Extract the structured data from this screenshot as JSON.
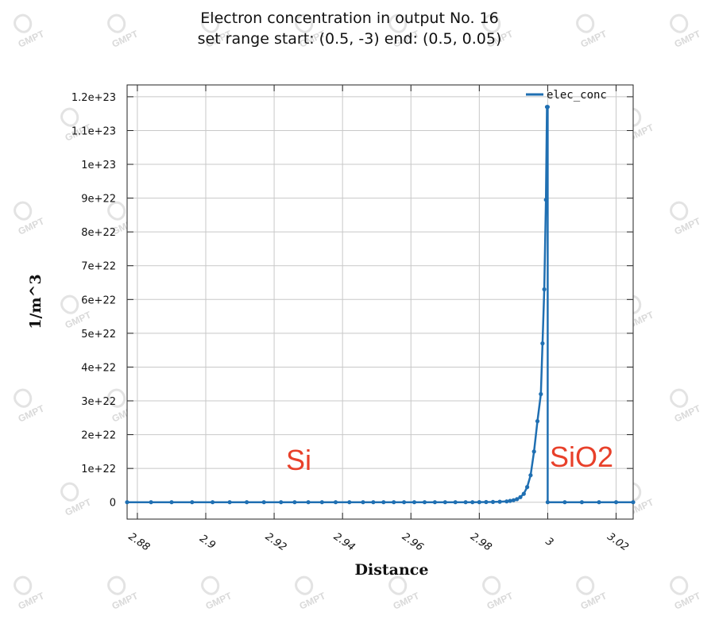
{
  "chart_data": {
    "type": "line",
    "title": "Electron concentration in output No. 16",
    "subtitle": "set range start: (0.5, -3) end: (0.5, 0.05)",
    "xlabel": "Distance",
    "ylabel": "1/m^3",
    "xlim": [
      2.877,
      3.025
    ],
    "ylim": [
      -5e+21,
      1.235e+23
    ],
    "x_ticks": [
      2.88,
      2.9,
      2.92,
      2.94,
      2.96,
      2.98,
      3,
      3.02
    ],
    "x_tick_labels": [
      "2.88",
      "2.9",
      "2.92",
      "2.94",
      "2.96",
      "2.98",
      "3",
      "3.02"
    ],
    "y_ticks": [
      0,
      1e+22,
      2e+22,
      3e+22,
      4e+22,
      5e+22,
      6e+22,
      7e+22,
      8e+22,
      9e+22,
      1e+23,
      1.1e+23,
      1.2e+23
    ],
    "y_tick_labels": [
      "0",
      "1e+22",
      "2e+22",
      "3e+22",
      "4e+22",
      "5e+22",
      "6e+22",
      "7e+22",
      "8e+22",
      "9e+22",
      "1e+23",
      "1.1e+23",
      "1.2e+23"
    ],
    "grid": true,
    "legend_position": "top-right",
    "color": "#1f6fb2",
    "series": [
      {
        "name": "elec_conc",
        "x": [
          2.877,
          2.884,
          2.89,
          2.896,
          2.902,
          2.907,
          2.912,
          2.917,
          2.922,
          2.926,
          2.93,
          2.934,
          2.938,
          2.942,
          2.946,
          2.949,
          2.952,
          2.955,
          2.958,
          2.961,
          2.964,
          2.967,
          2.97,
          2.973,
          2.976,
          2.978,
          2.98,
          2.982,
          2.984,
          2.986,
          2.988,
          2.989,
          2.99,
          2.991,
          2.992,
          2.993,
          2.994,
          2.995,
          2.996,
          2.997,
          2.998,
          2.9985,
          2.999,
          2.9995,
          2.9998,
          3.0,
          3.0,
          3.005,
          3.01,
          3.015,
          3.02,
          3.025
        ],
        "y": [
          0,
          0,
          0,
          0,
          0,
          0,
          0,
          0,
          0,
          0,
          0,
          0,
          0,
          0,
          0,
          0,
          0,
          0,
          0,
          0,
          0,
          0,
          0,
          0,
          0,
          1e+19,
          2e+19,
          4e+19,
          8e+19,
          1.5e+20,
          2.5e+20,
          4e+20,
          6e+20,
          9e+20,
          1.5e+21,
          2.5e+21,
          4.5e+21,
          8e+21,
          1.5e+22,
          2.4e+22,
          3.2e+22,
          4.7e+22,
          6.3e+22,
          8.95e+22,
          1.17e+23,
          1.17e+23,
          0,
          0,
          0,
          0,
          0,
          0
        ]
      }
    ],
    "annotations": [
      {
        "text": "Si",
        "color": "#e8402a"
      },
      {
        "text": "SiO2",
        "color": "#e8402a"
      }
    ]
  },
  "watermark": {
    "text": "GMPT"
  }
}
